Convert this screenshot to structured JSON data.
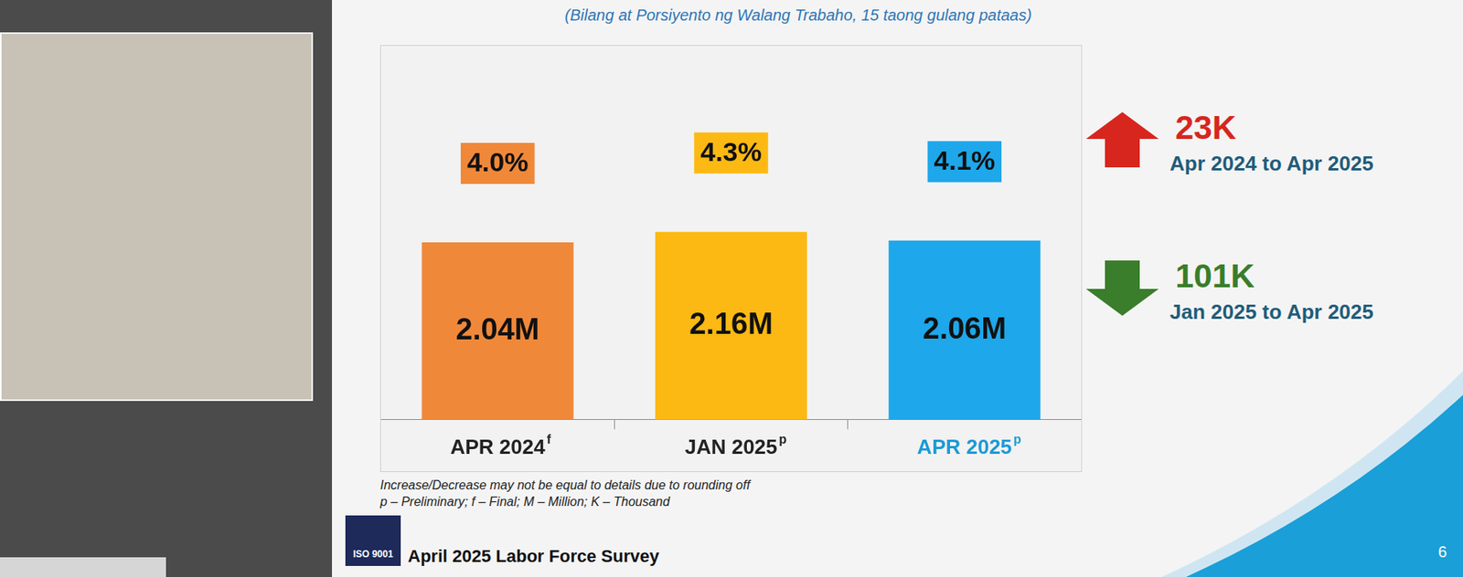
{
  "subtitle": "(Bilang at Porsiyento ng Walang Trabaho, 15 taong gulang pataas)",
  "chart_data": {
    "type": "bar",
    "categories": [
      "APR 2024",
      "JAN 2025",
      "APR 2025"
    ],
    "category_marks": [
      "f",
      "p",
      "p"
    ],
    "values": [
      2.04,
      2.16,
      2.06
    ],
    "value_labels": [
      "2.04M",
      "2.16M",
      "2.06M"
    ],
    "colors": [
      "#f0883a",
      "#fdb913",
      "#1ea7ea"
    ],
    "rate_labels": [
      "4.0%",
      "4.3%",
      "4.1%"
    ],
    "ylim": [
      0,
      4.3
    ],
    "data_labels": true,
    "tick_labels": "x",
    "grid": false
  },
  "changes": [
    {
      "label": "23K",
      "direction": "up",
      "color": "#d7261e",
      "period": "Apr 2024 to Apr 2025"
    },
    {
      "label": "101K",
      "direction": "down",
      "color": "#3a7d2a",
      "period": "Jan 2025 to Apr 2025"
    }
  ],
  "notes": [
    "Increase/Decrease may not be equal to details due to rounding off",
    "p – Preliminary; f – Final; M – Million; K – Thousand"
  ],
  "badge": "ISO 9001",
  "footer": "April 2025 Labor Force Survey",
  "page": "6"
}
